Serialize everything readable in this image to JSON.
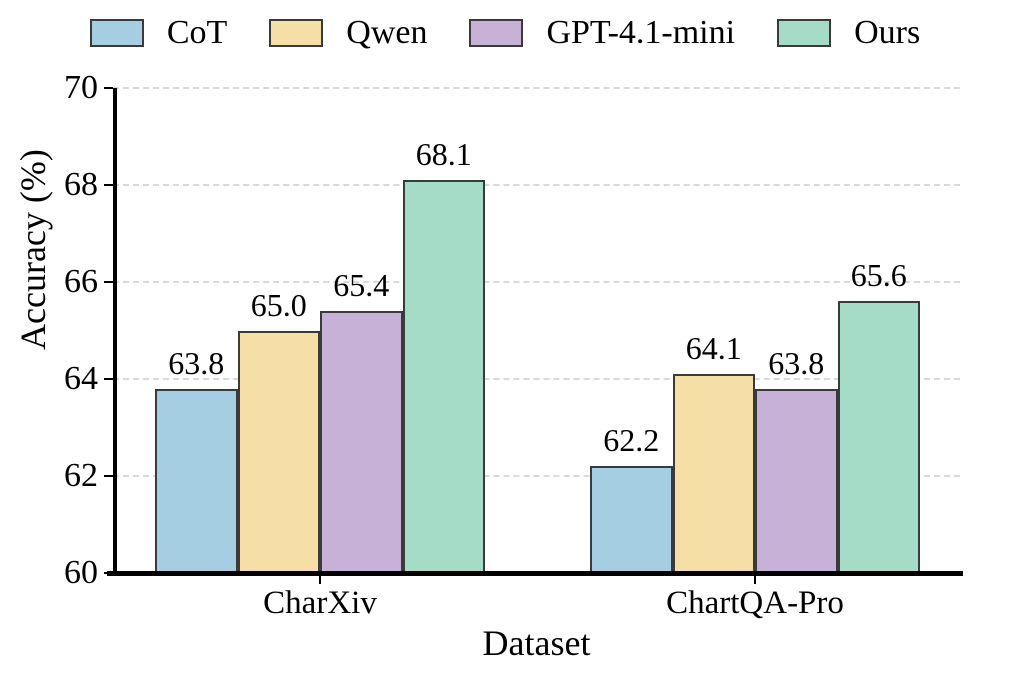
{
  "figure": {
    "background": "#ffffff",
    "bar_edge_color": "#3a3a3a",
    "grid_color": "#d9d9d9",
    "axis_color": "#000000",
    "text_color": "#000000"
  },
  "chart_data": {
    "type": "bar",
    "title": "",
    "xlabel": "Dataset",
    "ylabel": "Accuracy (%)",
    "ylim": [
      60,
      70
    ],
    "yticks": [
      "60",
      "62",
      "64",
      "66",
      "68",
      "70"
    ],
    "grid": "horizontal-dashed",
    "legend_position": "top",
    "categories": [
      "CharXiv",
      "ChartQA-Pro"
    ],
    "series": [
      {
        "name": "CoT",
        "color": "#a6cee3",
        "values": [
          63.8,
          62.2
        ],
        "display_values": [
          "63.8",
          "62.2"
        ]
      },
      {
        "name": "Qwen",
        "color": "#f6dfa7",
        "values": [
          65.0,
          64.1
        ],
        "display_values": [
          "65.0",
          "64.1"
        ]
      },
      {
        "name": "GPT-4.1-mini",
        "color": "#c8b1d7",
        "values": [
          65.4,
          63.8
        ],
        "display_values": [
          "65.4",
          "63.8"
        ]
      },
      {
        "name": "Ours",
        "color": "#a5dcc7",
        "values": [
          68.1,
          65.6
        ],
        "display_values": [
          "68.1",
          "65.6"
        ]
      }
    ]
  }
}
